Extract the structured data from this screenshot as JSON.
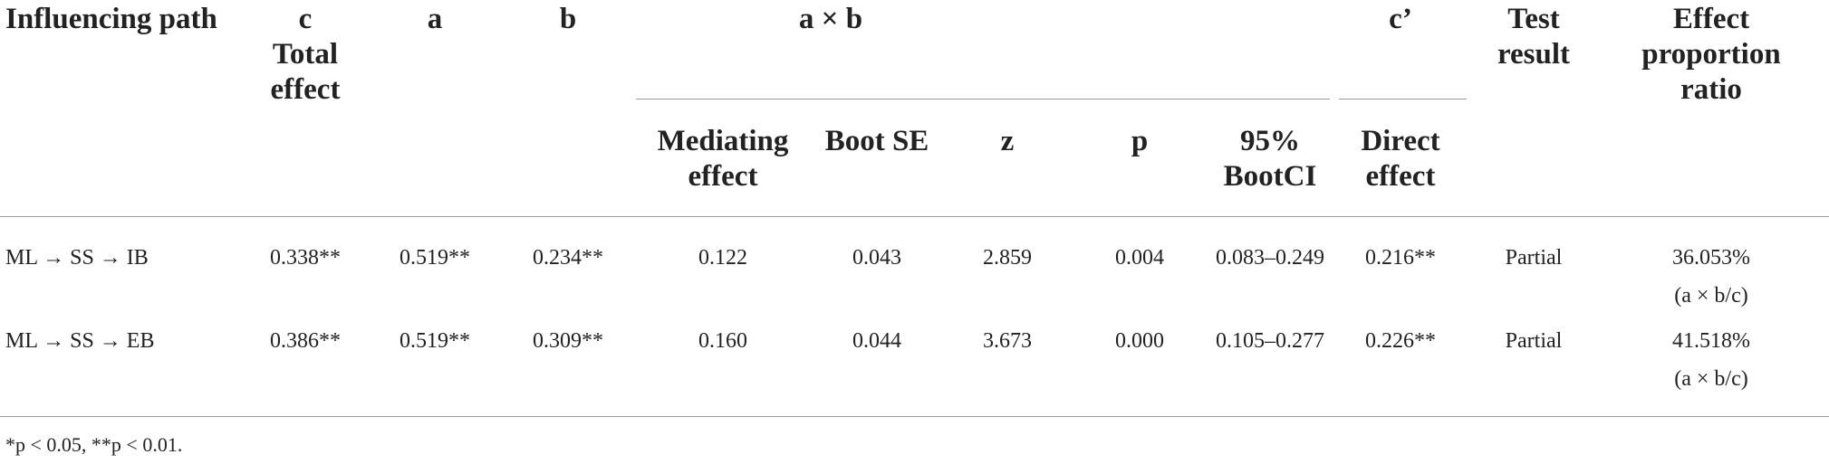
{
  "table": {
    "header": {
      "influencing_path": "Influencing path",
      "c": "c",
      "c_sub": "Total effect",
      "a": "a",
      "b": "b",
      "axb": "a × b",
      "c_prime": "c’",
      "test_result": "Test result",
      "effect_ratio": "Effect proportion ratio",
      "mediating_effect": "Mediating effect",
      "boot_se": "Boot SE",
      "z": "z",
      "p": "p",
      "boot_ci": "95% BootCI",
      "direct_effect": "Direct effect"
    },
    "rows": [
      [
        "ML → SS → IB",
        "0.338**",
        "0.519**",
        "0.234**",
        "0.122",
        "0.043",
        "2.859",
        "0.004",
        "0.083–0.249",
        "0.216**",
        "Partial",
        "36.053%",
        "(a × b/c)"
      ],
      [
        "ML → SS → EB",
        "0.386**",
        "0.519**",
        "0.309**",
        "0.160",
        "0.044",
        "3.673",
        "0.000",
        "0.105–0.277",
        "0.226**",
        "Partial",
        "41.518%",
        "(a × b/c)"
      ]
    ],
    "footnote": "*p < 0.05, **p < 0.01."
  }
}
